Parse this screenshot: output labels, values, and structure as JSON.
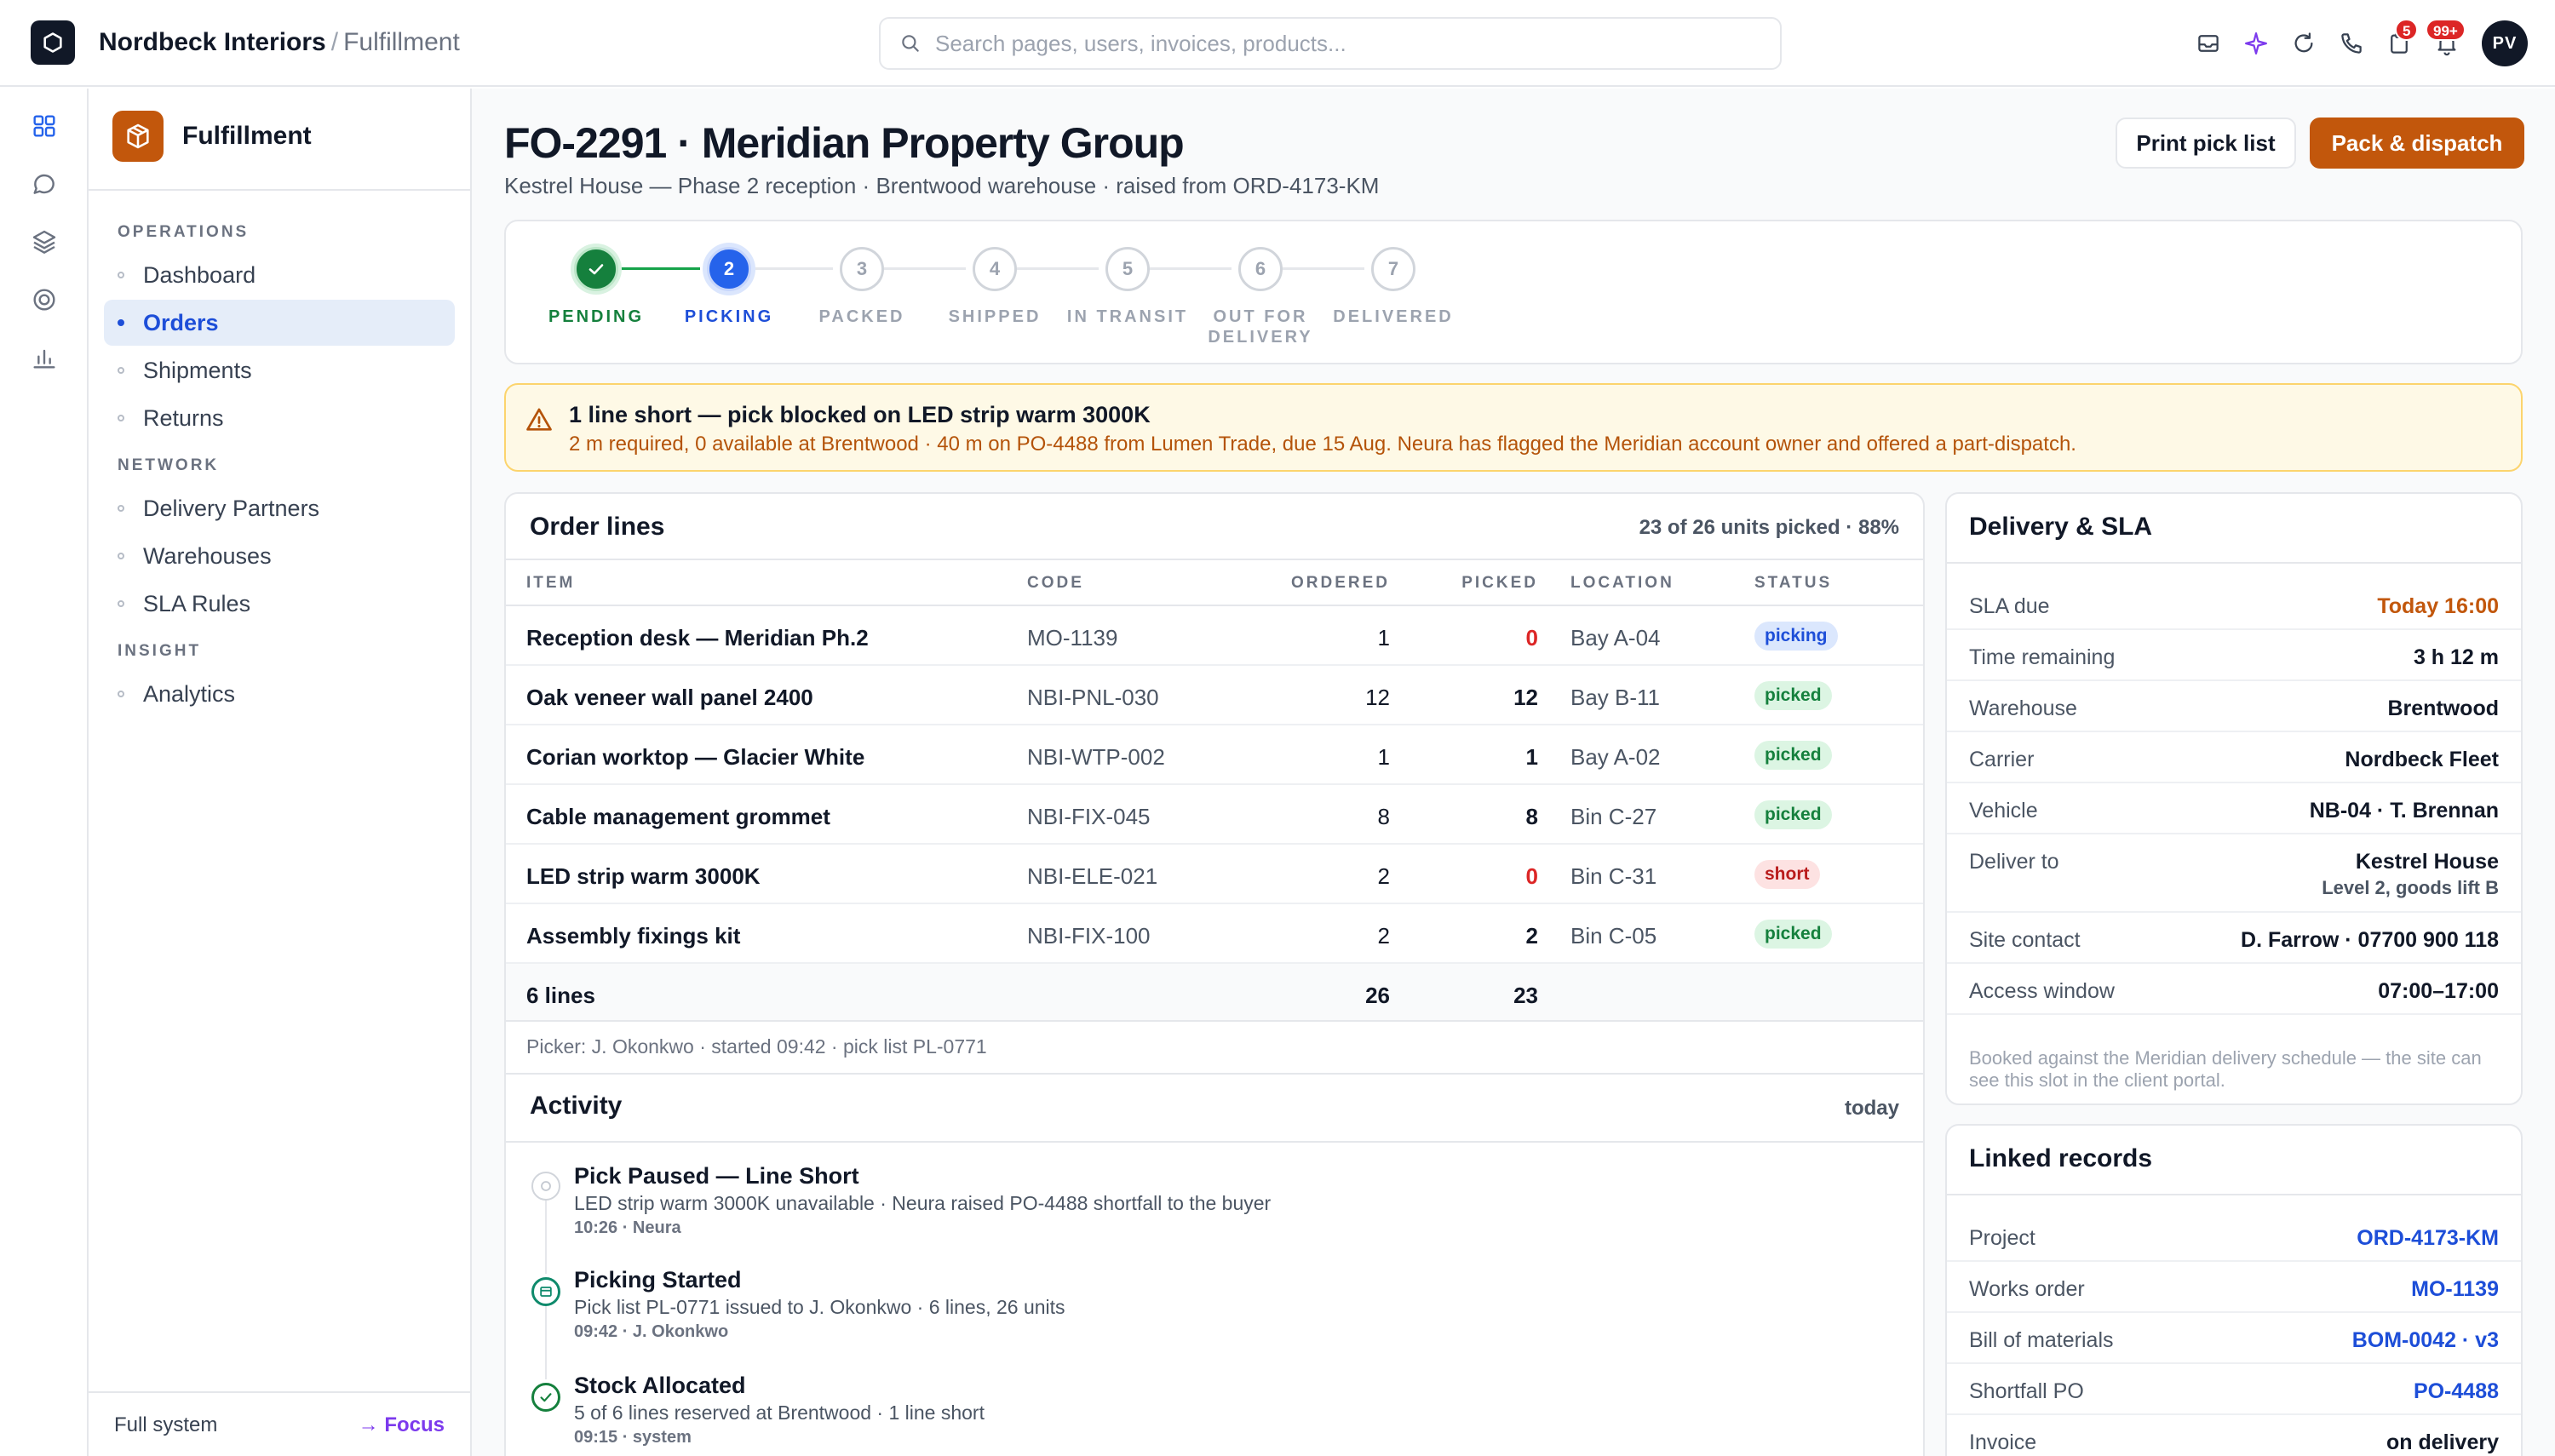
{
  "topbar": {
    "org": "Nordbeck Interiors",
    "separator": "/",
    "section": "Fulfillment",
    "search_placeholder": "Search pages, users, invoices, products...",
    "icons": [
      "inbox-icon",
      "sparkle-icon",
      "refresh-icon",
      "phone-icon",
      "clipboard-icon",
      "bell-icon"
    ],
    "clipboard_badge": "5",
    "bell_badge": "99+",
    "avatar_initials": "PV"
  },
  "rail": {
    "icons": [
      "grid-icon",
      "chat-icon",
      "layers-icon",
      "target-icon",
      "chart-icon"
    ]
  },
  "sidebar": {
    "title": "Fulfillment",
    "sections": [
      {
        "label": "OPERATIONS",
        "items": [
          "Dashboard",
          "Orders",
          "Shipments",
          "Returns"
        ]
      },
      {
        "label": "NETWORK",
        "items": [
          "Delivery Partners",
          "Warehouses",
          "SLA Rules"
        ]
      },
      {
        "label": "INSIGHT",
        "items": [
          "Analytics"
        ]
      }
    ],
    "active_item": "Orders",
    "footer_left": "Full system",
    "footer_right": "→ Focus"
  },
  "header": {
    "title": "FO-2291 · Meridian Property Group",
    "subtitle": "Kestrel House — Phase 2 reception · Brentwood warehouse · raised from ORD-4173-KM",
    "print_label": "Print pick list",
    "pack_label": "Pack & dispatch"
  },
  "stepper": {
    "steps": [
      {
        "num": "1",
        "label": "PENDING",
        "state": "done"
      },
      {
        "num": "2",
        "label": "PICKING",
        "state": "current"
      },
      {
        "num": "3",
        "label": "PACKED",
        "state": "todo"
      },
      {
        "num": "4",
        "label": "SHIPPED",
        "state": "todo"
      },
      {
        "num": "5",
        "label": "IN TRANSIT",
        "state": "todo"
      },
      {
        "num": "6",
        "label": "OUT FOR DELIVERY",
        "state": "todo"
      },
      {
        "num": "7",
        "label": "DELIVERED",
        "state": "todo"
      }
    ]
  },
  "alert": {
    "title": "1 line short — pick blocked on LED strip warm 3000K",
    "detail": "2 m required, 0 available at Brentwood · 40 m on PO-4488 from Lumen Trade, due 15 Aug. Neura has flagged the Meridian account owner and offered a part-dispatch."
  },
  "order_lines": {
    "title": "Order lines",
    "summary": "23 of 26 units picked · 88%",
    "columns": [
      "ITEM",
      "CODE",
      "ORDERED",
      "PICKED",
      "LOCATION",
      "STATUS"
    ],
    "rows": [
      {
        "item": "Reception desk — Meridian Ph.2",
        "code": "MO-1139",
        "ordered": "1",
        "picked": "0",
        "location": "Bay A-04",
        "status": "picking"
      },
      {
        "item": "Oak veneer wall panel 2400",
        "code": "NBI-PNL-030",
        "ordered": "12",
        "picked": "12",
        "location": "Bay B-11",
        "status": "picked"
      },
      {
        "item": "Corian worktop — Glacier White",
        "code": "NBI-WTP-002",
        "ordered": "1",
        "picked": "1",
        "location": "Bay A-02",
        "status": "picked"
      },
      {
        "item": "Cable management grommet",
        "code": "NBI-FIX-045",
        "ordered": "8",
        "picked": "8",
        "location": "Bin C-27",
        "status": "picked"
      },
      {
        "item": "LED strip warm 3000K",
        "code": "NBI-ELE-021",
        "ordered": "2",
        "picked": "0",
        "location": "Bin C-31",
        "status": "short"
      },
      {
        "item": "Assembly fixings kit",
        "code": "NBI-FIX-100",
        "ordered": "2",
        "picked": "2",
        "location": "Bin C-05",
        "status": "picked"
      }
    ],
    "total_label": "6 lines",
    "total_ordered": "26",
    "total_picked": "23",
    "picker_note": "Picker: J. Okonkwo · started 09:42 · pick list PL-0771"
  },
  "activity": {
    "title": "Activity",
    "meta": "today",
    "items": [
      {
        "title": "Pick Paused — Line Short",
        "desc": "LED strip warm 3000K unavailable · Neura raised PO-4488 shortfall to the buyer",
        "time": "10:26 · Neura",
        "icon": "pause-circle-icon"
      },
      {
        "title": "Picking Started",
        "desc": "Pick list PL-0771 issued to J. Okonkwo · 6 lines, 26 units",
        "time": "09:42 · J. Okonkwo",
        "icon": "scan-icon"
      },
      {
        "title": "Stock Allocated",
        "desc": "5 of 6 lines reserved at Brentwood · 1 line short",
        "time": "09:15 · system",
        "icon": "check-circle-icon"
      }
    ]
  },
  "delivery": {
    "title": "Delivery & SLA",
    "rows": [
      {
        "k": "SLA due",
        "v": "Today 16:00"
      },
      {
        "k": "Time remaining",
        "v": "3 h 12 m"
      },
      {
        "k": "Warehouse",
        "v": "Brentwood"
      },
      {
        "k": "Carrier",
        "v": "Nordbeck Fleet"
      },
      {
        "k": "Vehicle",
        "v": "NB-04 · T. Brennan"
      },
      {
        "k": "Deliver to",
        "v": "Kestrel House",
        "v2": "Level 2, goods lift B"
      },
      {
        "k": "Site contact",
        "v": "D. Farrow · 07700 900 118"
      },
      {
        "k": "Access window",
        "v": "07:00–17:00"
      }
    ],
    "note": "Booked against the Meridian delivery schedule — the site can see this slot in the client portal."
  },
  "linked": {
    "title": "Linked records",
    "rows": [
      {
        "k": "Project",
        "v": "ORD-4173-KM"
      },
      {
        "k": "Works order",
        "v": "MO-1139"
      },
      {
        "k": "Bill of materials",
        "v": "BOM-0042 · v3"
      },
      {
        "k": "Shortfall PO",
        "v": "PO-4488"
      },
      {
        "k": "Invoice",
        "v": "on delivery"
      }
    ]
  },
  "colors": {
    "accent_orange": "#c2570c",
    "primary_blue": "#1d4ed8",
    "success_green": "#15803d",
    "danger_red": "#dc2626",
    "warning_bg": "#fef9e6"
  }
}
